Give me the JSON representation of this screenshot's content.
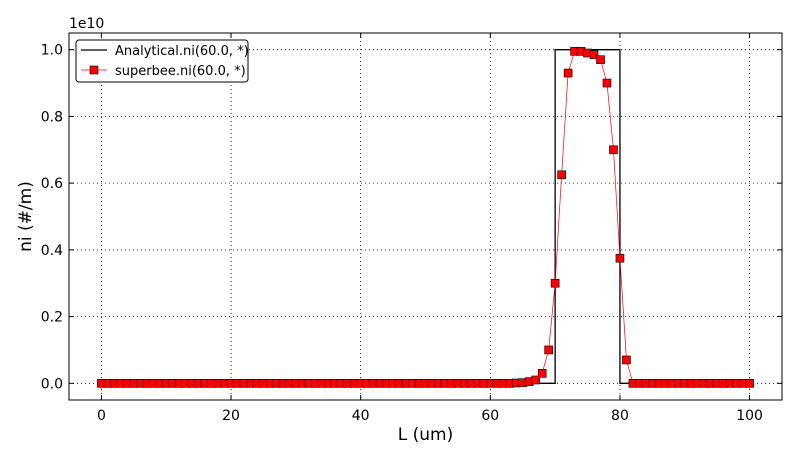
{
  "chart_data": {
    "type": "line",
    "title": "",
    "xlabel": "L (um)",
    "ylabel": "ni (#/m)",
    "y_offset_label": "1e10",
    "xlim": [
      -5,
      105
    ],
    "ylim": [
      -0.05,
      1.05
    ],
    "x_ticks": [
      0,
      20,
      40,
      60,
      80,
      100
    ],
    "x_tick_labels": [
      "0",
      "20",
      "40",
      "60",
      "80",
      "100"
    ],
    "y_ticks": [
      0.0,
      0.2,
      0.4,
      0.6,
      0.8,
      1.0
    ],
    "y_tick_labels": [
      "0.0",
      "0.2",
      "0.4",
      "0.6",
      "0.8",
      "1.0"
    ],
    "grid": true,
    "legend_position": "top-left",
    "series": [
      {
        "name": "Analytical.ni(60.0, *)",
        "style": "line",
        "color": "#000000",
        "x": [
          0,
          70,
          70,
          80,
          80,
          100
        ],
        "values": [
          0,
          0,
          1.0,
          1.0,
          0,
          0
        ]
      },
      {
        "name": "superbee.ni(60.0, *)",
        "style": "line-marker",
        "color": "#ff0000",
        "marker": "square",
        "x": [
          0,
          1,
          2,
          3,
          4,
          5,
          6,
          7,
          8,
          9,
          10,
          11,
          12,
          13,
          14,
          15,
          16,
          17,
          18,
          19,
          20,
          21,
          22,
          23,
          24,
          25,
          26,
          27,
          28,
          29,
          30,
          31,
          32,
          33,
          34,
          35,
          36,
          37,
          38,
          39,
          40,
          41,
          42,
          43,
          44,
          45,
          46,
          47,
          48,
          49,
          50,
          51,
          52,
          53,
          54,
          55,
          56,
          57,
          58,
          59,
          60,
          61,
          62,
          63,
          64,
          65,
          66,
          67,
          68,
          69,
          70,
          71,
          72,
          73,
          74,
          75,
          76,
          77,
          78,
          79,
          80,
          81,
          82,
          83,
          84,
          85,
          86,
          87,
          88,
          89,
          90,
          91,
          92,
          93,
          94,
          95,
          96,
          97,
          98,
          99,
          100
        ],
        "values": [
          0,
          0,
          0,
          0,
          0,
          0,
          0,
          0,
          0,
          0,
          0,
          0,
          0,
          0,
          0,
          0,
          0,
          0,
          0,
          0,
          0,
          0,
          0,
          0,
          0,
          0,
          0,
          0,
          0,
          0,
          0,
          0,
          0,
          0,
          0,
          0,
          0,
          0,
          0,
          0,
          0,
          0,
          0,
          0,
          0,
          0,
          0,
          0,
          0,
          0,
          0,
          0,
          0,
          0,
          0,
          0,
          0,
          0,
          0,
          0,
          0,
          0,
          0,
          0,
          0.001,
          0.002,
          0.005,
          0.01,
          0.03,
          0.1,
          0.3,
          0.625,
          0.93,
          0.995,
          0.995,
          0.99,
          0.985,
          0.97,
          0.9,
          0.7,
          0.375,
          0.07,
          0,
          0,
          0,
          0,
          0,
          0,
          0,
          0,
          0,
          0,
          0,
          0,
          0,
          0,
          0,
          0,
          0,
          0,
          0
        ]
      }
    ]
  }
}
